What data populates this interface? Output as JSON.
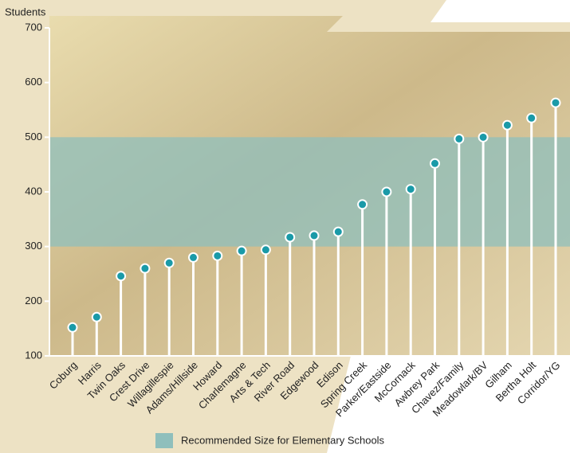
{
  "chart_data": {
    "type": "lollipop",
    "y_label": "Students",
    "categories": [
      "Coburg",
      "Harris",
      "Twin Oaks",
      "Crest Drive",
      "Willagillespie",
      "Adams/Hillside",
      "Howard",
      "Charlemagne",
      "Arts & Tech",
      "River Road",
      "Edgewood",
      "Edison",
      "Spring Creek",
      "Parker/Eastside",
      "McCornack",
      "Awbrey Park",
      "Chavez/Family",
      "Meadowlark/BV",
      "Gilham",
      "Bertha Holt",
      "Corridor/YG"
    ],
    "values": [
      152,
      171,
      246,
      260,
      270,
      280,
      283,
      292,
      294,
      317,
      320,
      327,
      377,
      400,
      405,
      452,
      497,
      500,
      522,
      535,
      563
    ],
    "color": "#1a9aa8",
    "ylim": [
      100,
      700
    ],
    "yticks": [
      100,
      200,
      300,
      400,
      500,
      600,
      700
    ],
    "band": {
      "range": [
        300,
        500
      ],
      "label": "Recommended Size for Elementary Schools",
      "color": "#8fbfbc"
    }
  }
}
